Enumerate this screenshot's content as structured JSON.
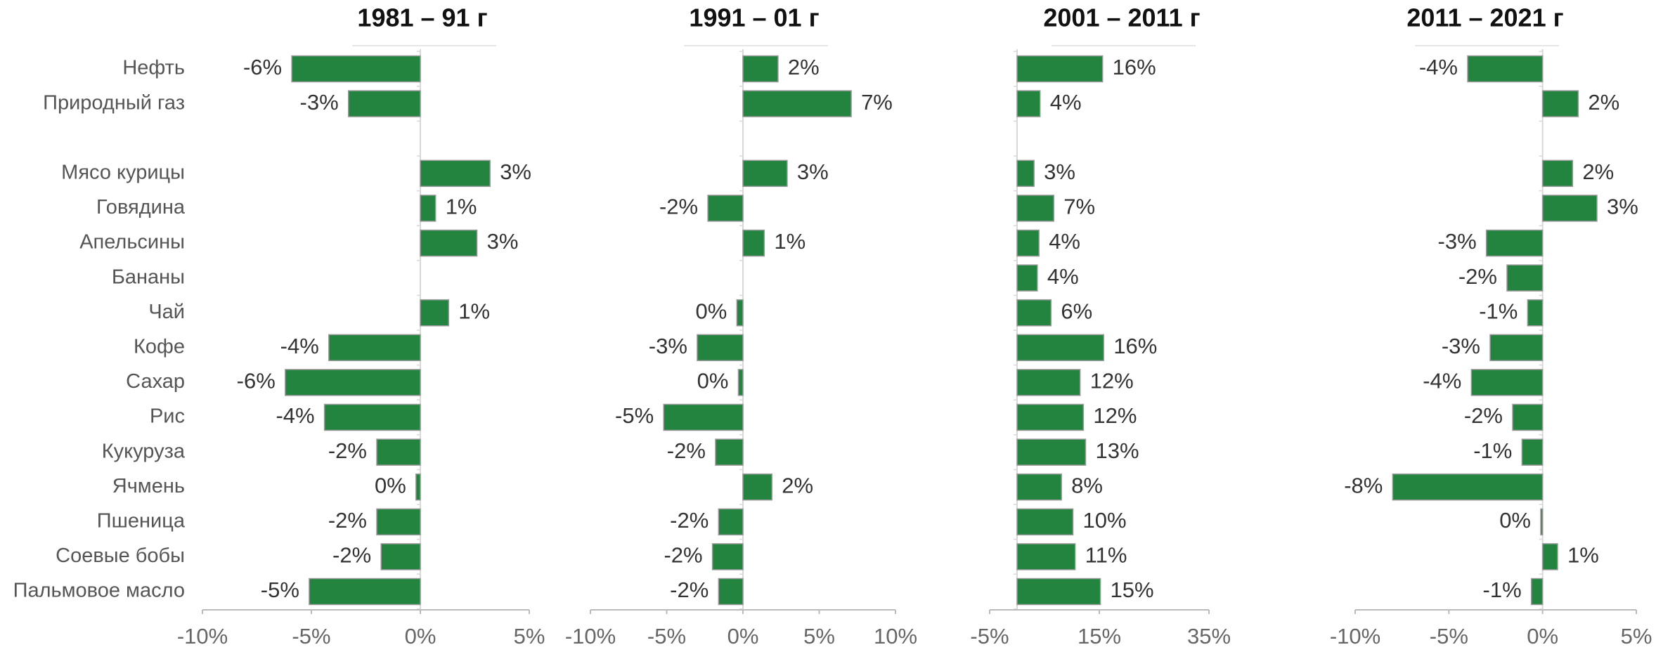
{
  "chart_data": [
    {
      "type": "bar",
      "orientation": "horizontal",
      "title": "1981 – 91 г",
      "color": "#23843f",
      "categories": [
        "Нефть",
        "Природный газ",
        null,
        "Мясо курицы",
        "Говядина",
        "Апельсины",
        "Бананы",
        "Чай",
        "Кофе",
        "Сахар",
        "Рис",
        "Кукуруза",
        "Ячмень",
        "Пшеница",
        "Соевые бобы",
        "Пальмовое масло"
      ],
      "values": [
        -5.9,
        -3.3,
        null,
        3.2,
        0.7,
        2.6,
        null,
        1.3,
        -4.2,
        -6.2,
        -4.4,
        -2.0,
        -0.2,
        -2.0,
        -1.8,
        -5.1
      ],
      "value_labels": [
        "-6%",
        "-3%",
        null,
        "3%",
        "1%",
        "3%",
        null,
        "1%",
        "-4%",
        "-6%",
        "-4%",
        "-2%",
        "0%",
        "-2%",
        "-2%",
        "-5%"
      ],
      "xlim": [
        -10,
        5
      ],
      "xticks": [
        {
          "value": -10,
          "label": "-10%"
        },
        {
          "value": -5,
          "label": "-5%"
        },
        {
          "value": 0,
          "label": "0%"
        },
        {
          "value": 5,
          "label": "5%"
        }
      ]
    },
    {
      "type": "bar",
      "orientation": "horizontal",
      "title": "1991 – 01 г",
      "color": "#23843f",
      "values": [
        2.3,
        7.1,
        null,
        2.9,
        -2.3,
        1.4,
        null,
        -0.4,
        -3.0,
        -0.3,
        -5.2,
        -1.8,
        1.9,
        -1.6,
        -2.0,
        -1.6
      ],
      "value_labels": [
        "2%",
        "7%",
        null,
        "3%",
        "-2%",
        "1%",
        null,
        "0%",
        "-3%",
        "0%",
        "-5%",
        "-2%",
        "2%",
        "-2%",
        "-2%",
        "-2%"
      ],
      "xlim": [
        -10,
        10
      ],
      "xticks": [
        {
          "value": -10,
          "label": "-10%"
        },
        {
          "value": -5,
          "label": "-5%"
        },
        {
          "value": 0,
          "label": "0%"
        },
        {
          "value": 5,
          "label": "5%"
        },
        {
          "value": 10,
          "label": "10%"
        }
      ]
    },
    {
      "type": "bar",
      "orientation": "horizontal",
      "title": "2001 – 2011 г",
      "color": "#23843f",
      "values": [
        15.6,
        4.2,
        null,
        3.1,
        6.7,
        4.0,
        3.7,
        6.2,
        15.8,
        11.5,
        12.1,
        12.5,
        8.1,
        10.2,
        10.6,
        15.2
      ],
      "value_labels": [
        "16%",
        "4%",
        null,
        "3%",
        "7%",
        "4%",
        "4%",
        "6%",
        "16%",
        "12%",
        "12%",
        "13%",
        "8%",
        "10%",
        "11%",
        "15%"
      ],
      "xlim": [
        -5,
        35
      ],
      "xticks": [
        {
          "value": -5,
          "label": "-5%"
        },
        {
          "value": 15,
          "label": "15%"
        },
        {
          "value": 35,
          "label": "35%"
        }
      ]
    },
    {
      "type": "bar",
      "orientation": "horizontal",
      "title": "2011 – 2021 г",
      "color": "#23843f",
      "values": [
        -4.0,
        1.9,
        null,
        1.6,
        2.9,
        -3.0,
        -1.9,
        -0.8,
        -2.8,
        -3.8,
        -1.6,
        -1.1,
        -8.0,
        -0.1,
        0.8,
        -0.6
      ],
      "value_labels": [
        "-4%",
        "2%",
        null,
        "2%",
        "3%",
        "-3%",
        "-2%",
        "-1%",
        "-3%",
        "-4%",
        "-2%",
        "-1%",
        "-8%",
        "0%",
        "1%",
        "-1%"
      ],
      "xlim": [
        -10,
        5
      ],
      "xticks": [
        {
          "value": -10,
          "label": "-10%"
        },
        {
          "value": -5,
          "label": "-5%"
        },
        {
          "value": 0,
          "label": "0%"
        },
        {
          "value": 5,
          "label": "5%"
        }
      ]
    }
  ]
}
